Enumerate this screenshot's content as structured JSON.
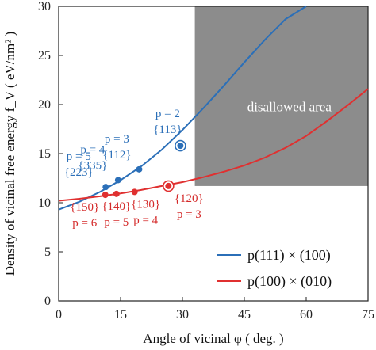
{
  "chart_data": {
    "type": "line",
    "xlabel": "Angle of vicinal φ ( deg. )",
    "ylabel": "Density of vicinal free energy f_V ( eV/nm² )",
    "xlim": [
      0,
      75
    ],
    "ylim": [
      0,
      30
    ],
    "x_ticks": [
      "0",
      "15",
      "30",
      "45",
      "60",
      "75"
    ],
    "y_ticks": [
      "0",
      "5",
      "10",
      "15",
      "20",
      "25",
      "30"
    ],
    "grid": false,
    "legend_position": "bottom-right",
    "colors": {
      "blue": "#2b6fb8",
      "red": "#e03030",
      "region": "#8c8c8c"
    },
    "disallowed_region": {
      "label": "disallowed area",
      "x_min": 33,
      "x_max": 75,
      "y_min": 11.7,
      "y_max": 30
    },
    "series": [
      {
        "name": "p(111) × (100)",
        "color": "#2b6fb8",
        "x": [
          0,
          5,
          10,
          15,
          20,
          25,
          30,
          35,
          40,
          45,
          50,
          55,
          60
        ],
        "y": [
          9.3,
          10.1,
          11.1,
          12.3,
          13.7,
          15.4,
          17.4,
          19.6,
          21.9,
          24.3,
          26.6,
          28.7,
          30
        ]
      },
      {
        "name": "p(100) × (010)",
        "color": "#e03030",
        "x": [
          0,
          5,
          10,
          15,
          20,
          25,
          30,
          35,
          40,
          45,
          50,
          55,
          60,
          65,
          70,
          75
        ],
        "y": [
          10.2,
          10.4,
          10.65,
          10.95,
          11.3,
          11.7,
          12.1,
          12.6,
          13.15,
          13.8,
          14.6,
          15.6,
          16.8,
          18.3,
          19.9,
          21.6
        ]
      }
    ],
    "points": [
      {
        "series": 0,
        "x": 11.4,
        "y": 11.6,
        "labels": [
          "p = 5",
          "{223}"
        ],
        "highlighted": false
      },
      {
        "series": 0,
        "x": 14.4,
        "y": 12.3,
        "labels": [
          "p = 4",
          "{335}"
        ],
        "highlighted": false
      },
      {
        "series": 0,
        "x": 19.5,
        "y": 13.4,
        "labels": [
          "p = 3",
          "{112}"
        ],
        "highlighted": false
      },
      {
        "series": 0,
        "x": 29.5,
        "y": 15.8,
        "labels": [
          "p = 2",
          "{113}"
        ],
        "highlighted": true
      },
      {
        "series": 1,
        "x": 11.3,
        "y": 10.8,
        "labels": [
          "{150}",
          "p = 6"
        ],
        "highlighted": false
      },
      {
        "series": 1,
        "x": 14.0,
        "y": 10.9,
        "labels": [
          "{140}",
          "p = 5"
        ],
        "highlighted": false
      },
      {
        "series": 1,
        "x": 18.4,
        "y": 11.1,
        "labels": [
          "{130}",
          "p = 4"
        ],
        "highlighted": false
      },
      {
        "series": 1,
        "x": 26.6,
        "y": 11.7,
        "labels": [
          "{120}",
          "p = 3"
        ],
        "highlighted": true
      }
    ]
  }
}
